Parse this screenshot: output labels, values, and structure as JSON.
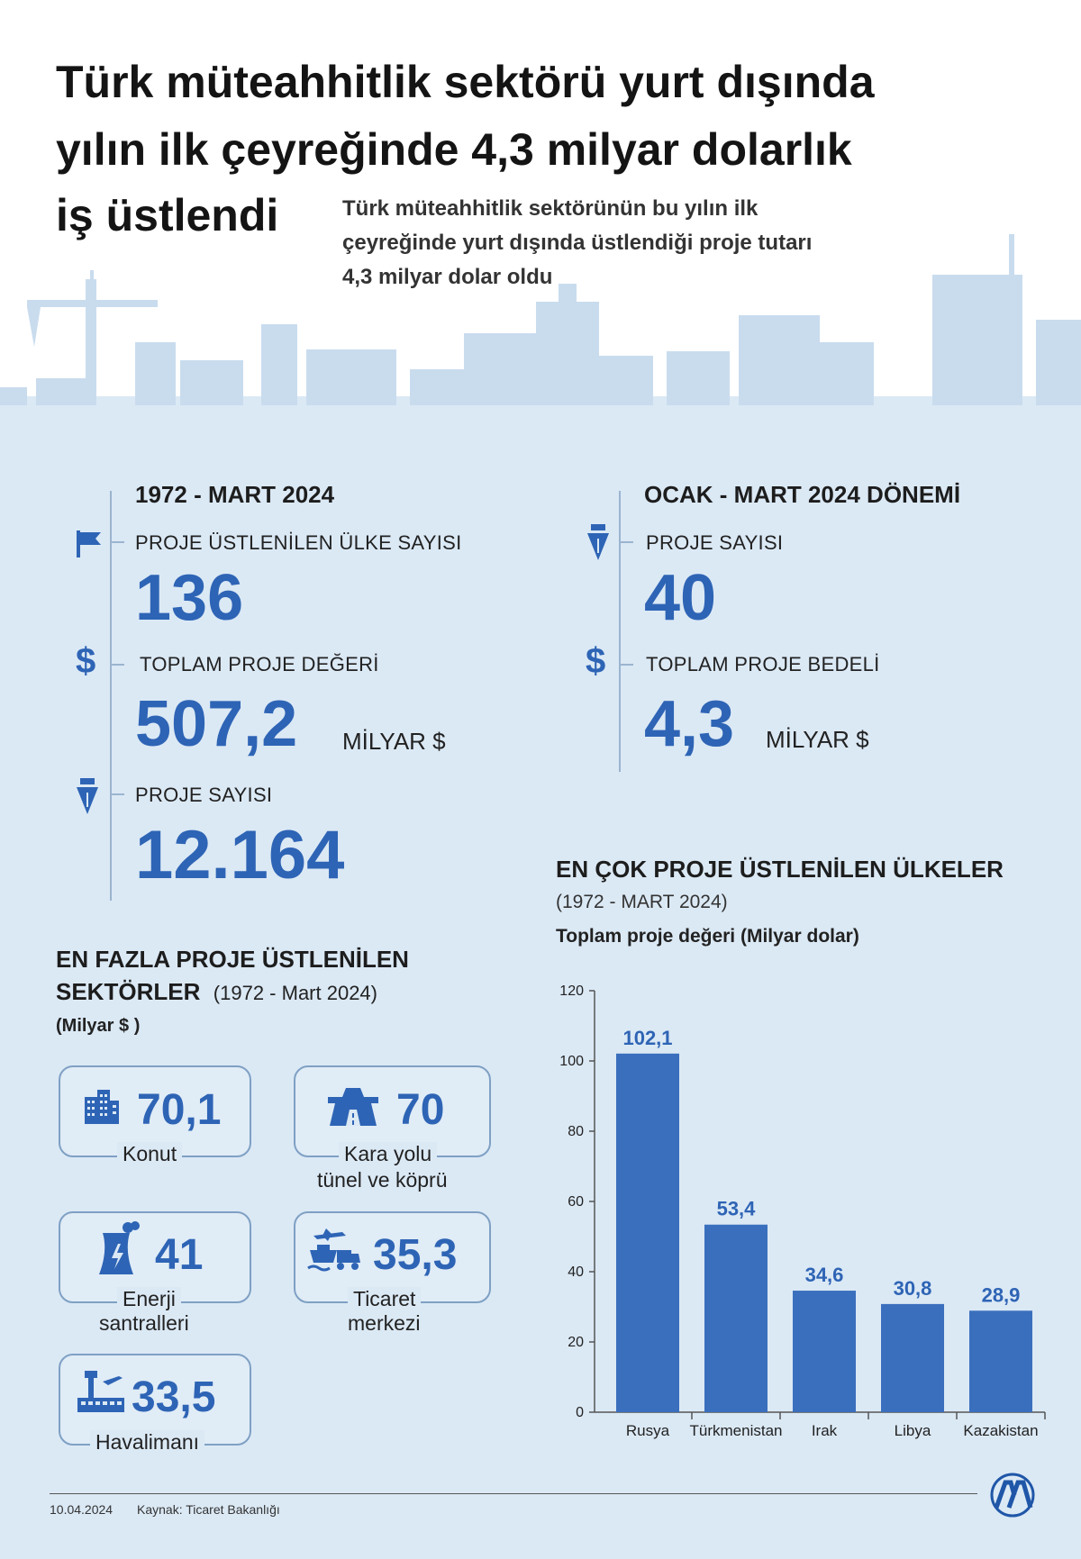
{
  "header": {
    "title_lines": [
      "Türk müteahhitlik sektörü yurt dışında",
      "yılın ilk çeyreğinde 4,3 milyar dolarlık",
      "iş üstlendi"
    ],
    "subtitle_lines": [
      "Türk müteahhitlik sektörünün bu yılın ilk",
      "çeyreğinde yurt dışında üstlendiği proje tutarı",
      "4,3 milyar dolar oldu"
    ]
  },
  "left_stats": {
    "heading": "1972 - MART 2024",
    "items": [
      {
        "label": "PROJE ÜSTLENİLEN ÜLKE SAYISI",
        "value": "136",
        "unit": "",
        "icon": "flag-icon"
      },
      {
        "label": "TOPLAM PROJE DEĞERİ",
        "value": "507,2",
        "unit": "MİLYAR $",
        "icon": "dollar-icon",
        "icon_glyph": "$"
      },
      {
        "label": "PROJE SAYISI",
        "value": "12.164",
        "unit": "",
        "icon": "pen-nib-icon"
      }
    ]
  },
  "right_stats": {
    "heading": "OCAK - MART 2024 DÖNEMİ",
    "items": [
      {
        "label": "PROJE SAYISI",
        "value": "40",
        "unit": "",
        "icon": "pen-nib-icon"
      },
      {
        "label": "TOPLAM PROJE BEDELİ",
        "value": "4,3",
        "unit": "MİLYAR $",
        "icon": "dollar-icon",
        "icon_glyph": "$"
      }
    ]
  },
  "sectors": {
    "heading_line1": "EN FAZLA PROJE ÜSTLENİLEN",
    "heading_line2": "SEKTÖRLER",
    "period": "(1972 - Mart 2024)",
    "unit": "(Milyar $ )",
    "items": [
      {
        "value": "70,1",
        "label_lines": [
          "Konut"
        ],
        "icon": "building-icon"
      },
      {
        "value": "70",
        "label_lines": [
          "Kara yolu",
          "tünel ve köprü"
        ],
        "icon": "road-tunnel-icon"
      },
      {
        "value": "41",
        "label_lines": [
          "Enerji",
          "santralleri"
        ],
        "icon": "power-plant-icon"
      },
      {
        "value": "35,3",
        "label_lines": [
          "Ticaret",
          "merkezi"
        ],
        "icon": "trade-transport-icon"
      },
      {
        "value": "33,5",
        "label_lines": [
          "Havalimanı"
        ],
        "icon": "airport-icon"
      }
    ]
  },
  "chart_data": {
    "type": "bar",
    "title": "EN ÇOK PROJE ÜSTLENİLEN ÜLKELER",
    "subtitle": "(1972 - MART 2024)",
    "ylabel": "Toplam proje değeri (Milyar dolar)",
    "xlabel": "",
    "categories": [
      "Rusya",
      "Türkmenistan",
      "Irak",
      "Libya",
      "Kazakistan"
    ],
    "values": [
      102.1,
      53.4,
      34.6,
      30.8,
      28.9
    ],
    "value_labels": [
      "102,1",
      "53,4",
      "34,6",
      "30,8",
      "28,9"
    ],
    "ylim": [
      0,
      120
    ],
    "yticks": [
      0,
      20,
      40,
      60,
      80,
      100,
      120
    ],
    "grid": false,
    "bar_color": "#3a6fbd"
  },
  "footer": {
    "date": "10.04.2024",
    "source": "Kaynak: Ticaret Bakanlığı",
    "logo_text": "AA"
  },
  "colors": {
    "accent": "#2e64b5",
    "sky_background": "#dbe9f5",
    "skyline": "#c9dcee"
  }
}
